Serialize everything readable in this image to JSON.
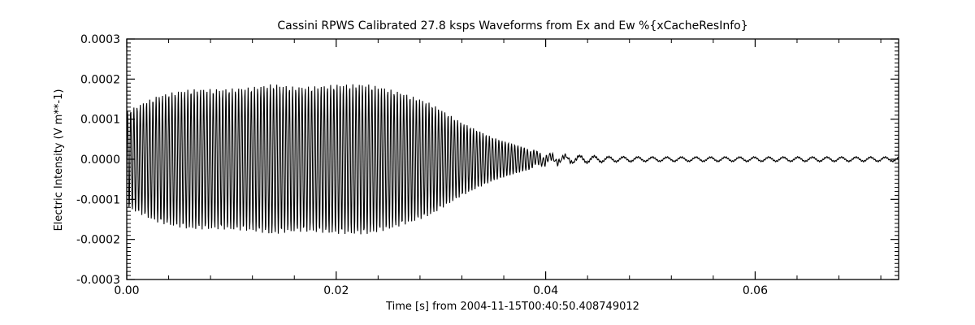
{
  "chart_data": {
    "type": "line",
    "title": "Cassini RPWS Calibrated 27.8 ksps Waveforms from Ex and Ew %{xCacheResInfo}",
    "xlabel": "Time [s] from 2004-11-15T00:40:50.408749012",
    "ylabel": "Electric Intensity (V m**-1)",
    "xlim": [
      0.0,
      0.0737
    ],
    "ylim": [
      -0.0003,
      0.0003
    ],
    "x_ticks": [
      {
        "value": 0.0,
        "label": "0.00"
      },
      {
        "value": 0.02,
        "label": "0.02"
      },
      {
        "value": 0.04,
        "label": "0.04"
      },
      {
        "value": 0.06,
        "label": "0.06"
      }
    ],
    "y_ticks": [
      {
        "value": 0.0003,
        "label": "0.0003"
      },
      {
        "value": 0.0002,
        "label": "0.0002"
      },
      {
        "value": 0.0001,
        "label": "0.0001"
      },
      {
        "value": 0.0,
        "label": "0.0000"
      },
      {
        "value": -0.0001,
        "label": "-0.0001"
      },
      {
        "value": -0.0002,
        "label": "-0.0002"
      },
      {
        "value": -0.0003,
        "label": "-0.0003"
      }
    ],
    "grid": false,
    "legend": "none",
    "series": [
      {
        "color": "#000000",
        "envelope_time_s": [
          0.0,
          0.003,
          0.006,
          0.009,
          0.012,
          0.014,
          0.016,
          0.018,
          0.02,
          0.023,
          0.026,
          0.029,
          0.032,
          0.035,
          0.038,
          0.04,
          0.042,
          0.044,
          0.046,
          0.05,
          0.06,
          0.0737
        ],
        "envelope_amplitude": [
          0.00012,
          0.00016,
          0.000185,
          0.0002,
          0.00022,
          0.000235,
          0.000225,
          0.00022,
          0.000215,
          0.0002,
          0.00017,
          0.00014,
          9.5e-05,
          6e-05,
          3.5e-05,
          2e-05,
          1.2e-05,
          8e-06,
          6e-06,
          5e-06,
          5e-06,
          5e-06
        ]
      }
    ]
  }
}
